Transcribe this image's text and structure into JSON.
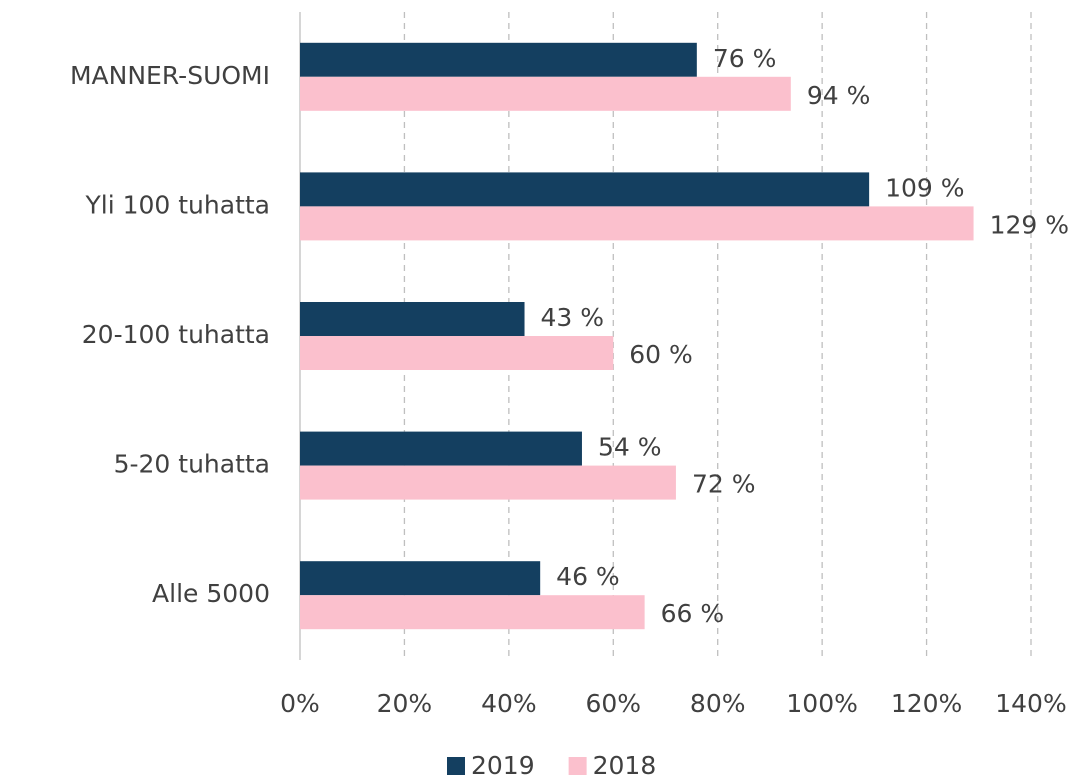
{
  "chart_data": {
    "type": "bar",
    "orientation": "horizontal",
    "categories": [
      "MANNER-SUOMI",
      "Yli 100 tuhatta",
      "20-100 tuhatta",
      "5-20 tuhatta",
      "Alle 5000"
    ],
    "series": [
      {
        "name": "2019",
        "color": "#143f60",
        "values": [
          76,
          109,
          43,
          54,
          46
        ],
        "value_labels": [
          "76 %",
          "109 %",
          "43 %",
          "54 %",
          "46 %"
        ]
      },
      {
        "name": "2018",
        "color": "#fbc0cd",
        "values": [
          94,
          129,
          60,
          72,
          66
        ],
        "value_labels": [
          "94 %",
          "129 %",
          "60 %",
          "72 %",
          "66 %"
        ]
      }
    ],
    "xlim": [
      0,
      140
    ],
    "xticks": [
      {
        "value": 0,
        "label": "0%"
      },
      {
        "value": 20,
        "label": "20%"
      },
      {
        "value": 40,
        "label": "40%"
      },
      {
        "value": 60,
        "label": "60%"
      },
      {
        "value": 80,
        "label": "80%"
      },
      {
        "value": 100,
        "label": "100%"
      },
      {
        "value": 120,
        "label": "120%"
      },
      {
        "value": 140,
        "label": "140%"
      }
    ],
    "grid": true,
    "legend": "bottom"
  }
}
